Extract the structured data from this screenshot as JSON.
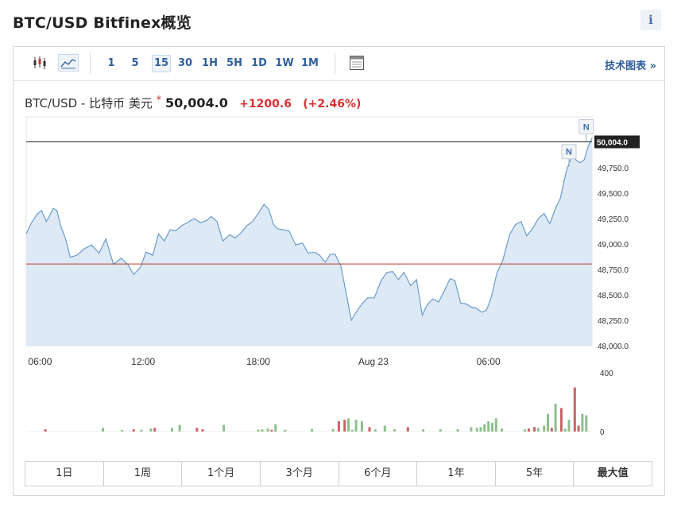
{
  "header": {
    "title": "BTC/USD Bitfinex概览",
    "info_label": "i"
  },
  "toolbar": {
    "intervals": [
      "1",
      "5",
      "15",
      "30",
      "1H",
      "5H",
      "1D",
      "1W",
      "1M"
    ],
    "active_interval": "15",
    "tech_chart_label": "技术图表 »"
  },
  "quote": {
    "symbol": "BTC/USD - 比特币 美元",
    "marker": "*",
    "price": "50,004.0",
    "change": "+1200.6",
    "change_pct": "(+2.46%)"
  },
  "range_tabs": [
    "1日",
    "1周",
    "1个月",
    "3个月",
    "6个月",
    "1年",
    "5年",
    "最大值"
  ],
  "chart_data": {
    "type": "area",
    "price_axis": {
      "ylim": [
        48000,
        50250
      ],
      "ticks": [
        48000,
        48250,
        48500,
        48750,
        49000,
        49250,
        49500,
        49750
      ],
      "tick_labels": [
        "48,000.0",
        "48,250.0",
        "48,500.0",
        "48,750.0",
        "49,000.0",
        "49,250.0",
        "49,500.0",
        "49,750.0"
      ],
      "last_label": "50,004.0",
      "last_value": 50004.0,
      "ref_value": 48803.4
    },
    "x_ticks": [
      "06:00",
      "12:00",
      "18:00",
      "Aug 23",
      "06:00"
    ],
    "x_tick_hours": [
      6,
      12,
      18,
      24,
      30
    ],
    "x_range_hours": [
      5.9,
      35.4
    ],
    "price_series": {
      "hours": [
        5.9,
        6.15,
        6.45,
        6.7,
        6.95,
        7.1,
        7.3,
        7.5,
        7.7,
        7.95,
        8.2,
        8.55,
        8.9,
        9.3,
        9.7,
        10.05,
        10.45,
        10.85,
        11.2,
        11.5,
        11.85,
        12.15,
        12.5,
        12.8,
        13.1,
        13.4,
        13.7,
        14.0,
        14.3,
        14.65,
        15.0,
        15.3,
        15.55,
        15.85,
        16.15,
        16.5,
        16.8,
        17.1,
        17.4,
        17.7,
        18.0,
        18.3,
        18.55,
        18.8,
        19.0,
        19.3,
        19.6,
        19.95,
        20.3,
        20.6,
        20.9,
        21.2,
        21.5,
        21.75,
        22.0,
        22.3,
        22.6,
        22.85,
        23.1,
        23.4,
        23.7,
        24.05,
        24.4,
        24.7,
        25.0,
        25.3,
        25.6,
        25.95,
        26.25,
        26.55,
        26.8,
        27.1,
        27.4,
        27.7,
        28.0,
        28.25,
        28.55,
        28.85,
        29.1,
        29.35,
        29.65,
        29.9,
        30.15,
        30.45,
        30.75,
        31.1,
        31.4,
        31.7,
        32.0,
        32.3,
        32.6,
        32.9,
        33.2,
        33.5,
        33.75,
        34.05,
        34.35,
        34.6,
        34.8,
        35.0,
        35.2,
        35.4
      ],
      "values": [
        49100,
        49200,
        49290,
        49330,
        49220,
        49270,
        49350,
        49330,
        49180,
        49050,
        48870,
        48890,
        48950,
        48990,
        48910,
        49050,
        48800,
        48860,
        48800,
        48700,
        48770,
        48920,
        48890,
        49100,
        49030,
        49140,
        49130,
        49180,
        49210,
        49250,
        49210,
        49230,
        49270,
        49220,
        49030,
        49090,
        49060,
        49110,
        49180,
        49220,
        49300,
        49390,
        49340,
        49190,
        49150,
        49140,
        49130,
        48990,
        49010,
        48910,
        48920,
        48890,
        48820,
        48900,
        48900,
        48790,
        48500,
        48250,
        48330,
        48410,
        48470,
        48470,
        48640,
        48720,
        48730,
        48650,
        48720,
        48590,
        48650,
        48300,
        48400,
        48460,
        48430,
        48540,
        48660,
        48640,
        48420,
        48410,
        48380,
        48370,
        48330,
        48350,
        48480,
        48720,
        48840,
        49090,
        49190,
        49220,
        49080,
        49150,
        49250,
        49300,
        49200,
        49350,
        49450,
        49710,
        49870,
        49820,
        49800,
        49830,
        49960,
        50040
      ]
    },
    "volume_axis": {
      "ylim": [
        0,
        400
      ],
      "tick_labels": [
        "400",
        "0"
      ]
    },
    "volume_series": {
      "hours": [
        6.9,
        9.9,
        10.9,
        11.5,
        11.9,
        12.4,
        12.6,
        13.5,
        13.9,
        14.8,
        15.1,
        16.2,
        18.0,
        18.2,
        18.5,
        18.7,
        18.9,
        19.4,
        20.8,
        21.9,
        22.2,
        22.5,
        22.7,
        22.9,
        23.1,
        23.4,
        23.8,
        24.1,
        24.6,
        25.1,
        25.8,
        26.6,
        27.5,
        28.4,
        29.1,
        29.4,
        29.6,
        29.8,
        30.0,
        30.2,
        30.4,
        30.7,
        31.9,
        32.1,
        32.4,
        32.6,
        32.9,
        33.1,
        33.3,
        33.5,
        33.8,
        34.0,
        34.2,
        34.5,
        34.7,
        34.9,
        35.1
      ],
      "values": [
        15,
        25,
        10,
        15,
        12,
        20,
        25,
        25,
        45,
        25,
        15,
        45,
        12,
        15,
        20,
        12,
        50,
        12,
        18,
        18,
        70,
        80,
        90,
        12,
        80,
        70,
        30,
        15,
        40,
        15,
        30,
        15,
        15,
        15,
        30,
        25,
        30,
        50,
        70,
        60,
        90,
        20,
        15,
        20,
        30,
        25,
        40,
        120,
        25,
        190,
        160,
        20,
        80,
        300,
        40,
        120,
        110
      ],
      "up": [
        false,
        true,
        true,
        false,
        true,
        true,
        false,
        true,
        true,
        false,
        false,
        true,
        true,
        true,
        true,
        false,
        true,
        true,
        true,
        true,
        false,
        false,
        true,
        true,
        true,
        true,
        false,
        true,
        true,
        true,
        false,
        true,
        true,
        true,
        true,
        true,
        true,
        true,
        true,
        true,
        true,
        true,
        true,
        false,
        false,
        true,
        true,
        true,
        false,
        true,
        false,
        true,
        true,
        false,
        false,
        true,
        true
      ]
    },
    "markers": [
      {
        "label": "N",
        "hour": 35.1,
        "value": 50004
      },
      {
        "label": "N",
        "hour": 34.2,
        "value": 49760
      }
    ],
    "colors": {
      "line": "#6a9ccb",
      "fill": "#dde9f5",
      "ref_line": "#c0392b",
      "last_line": "#222222",
      "vol_up": "#8cc08c",
      "vol_down": "#c86464"
    }
  }
}
